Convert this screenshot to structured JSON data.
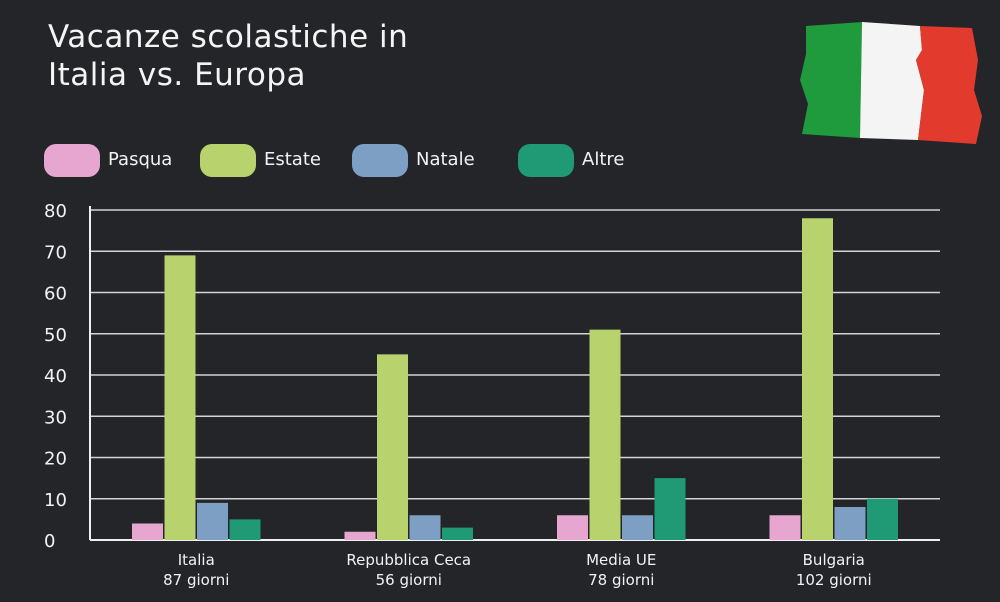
{
  "title": {
    "line1": "Vacanze scolastiche in",
    "line2": "Italia vs. Europa"
  },
  "colors": {
    "background": "#232529",
    "flag_green": "#1f9a3c",
    "flag_white": "#f4f4f4",
    "flag_red": "#e23a2c"
  },
  "chart_data": {
    "type": "bar",
    "title": "Vacanze scolastiche in Italia vs. Europa",
    "xlabel": "",
    "ylabel": "",
    "ylim": [
      0,
      80
    ],
    "yticks": [
      0,
      10,
      20,
      30,
      40,
      50,
      60,
      70,
      80
    ],
    "grid": true,
    "legend_position": "top-left",
    "categories": [
      {
        "line1": "Italia",
        "line2": "87 giorni"
      },
      {
        "line1": "Repubblica Ceca",
        "line2": "56 giorni"
      },
      {
        "line1": "Media UE",
        "line2": "78 giorni"
      },
      {
        "line1": "Bulgaria",
        "line2": "102 giorni"
      }
    ],
    "series": [
      {
        "name": "Pasqua",
        "color": "#e7a6d0",
        "values": [
          4,
          2,
          6,
          6
        ]
      },
      {
        "name": "Estate",
        "color": "#b8d36e",
        "values": [
          69,
          45,
          51,
          78
        ]
      },
      {
        "name": "Natale",
        "color": "#7e9fc4",
        "values": [
          9,
          6,
          6,
          8
        ]
      },
      {
        "name": "Altre",
        "color": "#1f9a74",
        "values": [
          5,
          3,
          15,
          10
        ]
      }
    ]
  }
}
